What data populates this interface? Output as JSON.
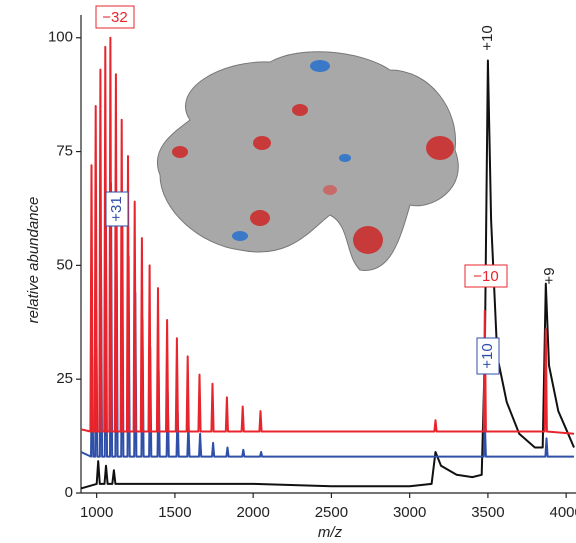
{
  "chart_data": {
    "type": "line",
    "y_label": "relative abundance",
    "x_label": "m/z",
    "xlim": [
      900,
      4050
    ],
    "ylim": [
      0,
      105
    ],
    "xticks": [
      1000,
      1500,
      2000,
      2500,
      3000,
      3500,
      4000
    ],
    "yticks": [
      0,
      25,
      50,
      75,
      100
    ],
    "annotations": [
      "−32",
      "+31",
      "+10",
      "−10",
      "+10",
      "+9"
    ],
    "series": [
      {
        "color": "#e8242c",
        "x": [
          900,
          960,
          967,
          974,
          987,
          994,
          1001,
          1017,
          1024,
          1031,
          1048,
          1055,
          1062,
          1081,
          1088,
          1095,
          1116,
          1123,
          1130,
          1153,
          1160,
          1167,
          1193,
          1200,
          1207,
          1236,
          1243,
          1250,
          1282,
          1289,
          1296,
          1331,
          1338,
          1345,
          1385,
          1392,
          1399,
          1443,
          1450,
          1457,
          1506,
          1513,
          1520,
          1575,
          1582,
          1589,
          1650,
          1657,
          1664,
          1733,
          1740,
          1747,
          1825,
          1832,
          1839,
          1926,
          1933,
          1940,
          2040,
          2047,
          2054,
          3158,
          3165,
          3172,
          3473,
          3480,
          3487,
          3863,
          3870,
          3877,
          4050
        ],
        "values": [
          14,
          13.5,
          72,
          13.5,
          13.5,
          85,
          13.5,
          13.5,
          93,
          13.5,
          13.5,
          98,
          13.5,
          13.5,
          100,
          13.5,
          13.5,
          92,
          13.5,
          13.5,
          82,
          13.5,
          13.5,
          74,
          13.5,
          13.5,
          64,
          13.5,
          13.5,
          56,
          13.5,
          13.5,
          50,
          13.5,
          13.5,
          45,
          13.5,
          13.5,
          38,
          13.5,
          13.5,
          34,
          13.5,
          13.5,
          30,
          13.5,
          13.5,
          26,
          13.5,
          13.5,
          24,
          13.5,
          13.5,
          21,
          13.5,
          13.5,
          19,
          13.5,
          13.5,
          18,
          13.5,
          13.5,
          16,
          13.5,
          13.5,
          40,
          13.5,
          13.5,
          36,
          13.5,
          13
        ]
      },
      {
        "color": "#2f4fa8",
        "x": [
          900,
          964,
          971,
          978,
          991,
          998,
          1005,
          1021,
          1028,
          1035,
          1052,
          1059,
          1066,
          1085,
          1092,
          1099,
          1120,
          1127,
          1134,
          1157,
          1164,
          1171,
          1197,
          1204,
          1211,
          1240,
          1247,
          1254,
          1286,
          1293,
          1300,
          1335,
          1342,
          1349,
          1389,
          1396,
          1403,
          1447,
          1454,
          1461,
          1510,
          1517,
          1524,
          1579,
          1586,
          1593,
          1654,
          1661,
          1668,
          1737,
          1744,
          1751,
          1829,
          1836,
          1843,
          1930,
          1937,
          1944,
          2044,
          2051,
          2058,
          3473,
          3480,
          3487,
          3867,
          3874,
          3881,
          4050
        ],
        "values": [
          9,
          8,
          30,
          8,
          8,
          40,
          8,
          8,
          52,
          8,
          8,
          62,
          8,
          8,
          68,
          8,
          8,
          66,
          8,
          8,
          60,
          8,
          8,
          52,
          8,
          8,
          44,
          8,
          8,
          38,
          8,
          8,
          32,
          8,
          8,
          27,
          8,
          8,
          22,
          8,
          8,
          18,
          8,
          8,
          15,
          8,
          8,
          13,
          8,
          8,
          11,
          8,
          8,
          10,
          8,
          8,
          9.5,
          8,
          8,
          9,
          8,
          8,
          16,
          8,
          8,
          12,
          8,
          8
        ]
      },
      {
        "color": "#111111",
        "x": [
          900,
          1000,
          1010,
          1020,
          1050,
          1060,
          1070,
          1100,
          1110,
          1120,
          1500,
          2000,
          2500,
          3000,
          3140,
          3165,
          3200,
          3300,
          3400,
          3460,
          3480,
          3500,
          3520,
          3560,
          3620,
          3700,
          3800,
          3850,
          3870,
          3890,
          3950,
          4000,
          4050
        ],
        "values": [
          1,
          2,
          7,
          2,
          2,
          6,
          2,
          2,
          5,
          2,
          2,
          2,
          1.5,
          1.5,
          2,
          9,
          6,
          4,
          3.5,
          4,
          30,
          95,
          60,
          30,
          20,
          13,
          10,
          10,
          46,
          28,
          18,
          14,
          10
        ]
      }
    ]
  }
}
